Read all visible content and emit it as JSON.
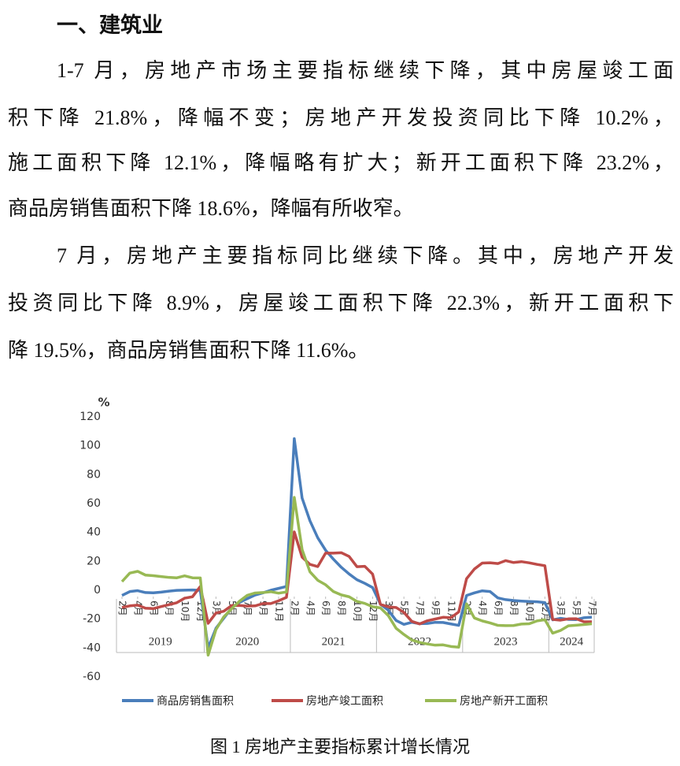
{
  "heading": "一、建筑业",
  "paragraphs": [
    [
      "1-7 月，房地产市场主要指标继续下降，其中房屋竣工面",
      "积下降 21.8%，降幅不变；房地产开发投资同比下降 10.2%，",
      "施工面积下降 12.1%，降幅略有扩大；新开工面积下降 23.2%，",
      "商品房销售面积下降 18.6%，降幅有所收窄。"
    ],
    [
      "7 月，房地产主要指标同比继续下降。其中，房地产开发",
      "投资同比下降 8.9%，房屋竣工面积下降 22.3%，新开工面积下",
      "降 19.5%，商品房销售面积下降 11.6%。"
    ]
  ],
  "chart_data": {
    "type": "line",
    "y_label": "%",
    "x": [
      "2019-02",
      "2019-03",
      "2019-04",
      "2019-05",
      "2019-06",
      "2019-07",
      "2019-08",
      "2019-09",
      "2019-10",
      "2019-11",
      "2019-12",
      "2020-02",
      "2020-03",
      "2020-04",
      "2020-05",
      "2020-06",
      "2020-07",
      "2020-08",
      "2020-09",
      "2020-10",
      "2020-11",
      "2020-12",
      "2021-02",
      "2021-03",
      "2021-04",
      "2021-05",
      "2021-06",
      "2021-07",
      "2021-08",
      "2021-09",
      "2021-10",
      "2021-11",
      "2021-12",
      "2022-02",
      "2022-03",
      "2022-04",
      "2022-05",
      "2022-06",
      "2022-07",
      "2022-08",
      "2022-09",
      "2022-10",
      "2022-11",
      "2022-12",
      "2023-02",
      "2023-03",
      "2023-04",
      "2023-05",
      "2023-06",
      "2023-07",
      "2023-08",
      "2023-09",
      "2023-10",
      "2023-11",
      "2023-12",
      "2024-02",
      "2024-03",
      "2024-04",
      "2024-05",
      "2024-06",
      "2024-07"
    ],
    "xticks": [
      {
        "value": "2019-02",
        "label": "2月"
      },
      {
        "value": "2019-04",
        "label": "4月"
      },
      {
        "value": "2019-06",
        "label": "6月"
      },
      {
        "value": "2019-08",
        "label": "8月"
      },
      {
        "value": "2019-10",
        "label": "10月"
      },
      {
        "value": "2019-12",
        "label": "12月"
      },
      {
        "value": "2020-03",
        "label": "3月"
      },
      {
        "value": "2020-05",
        "label": "5月"
      },
      {
        "value": "2020-07",
        "label": "7月"
      },
      {
        "value": "2020-09",
        "label": "9月"
      },
      {
        "value": "2020-11",
        "label": "11月"
      },
      {
        "value": "2021-02",
        "label": "2月"
      },
      {
        "value": "2021-04",
        "label": "4月"
      },
      {
        "value": "2021-06",
        "label": "6月"
      },
      {
        "value": "2021-08",
        "label": "8月"
      },
      {
        "value": "2021-10",
        "label": "10月"
      },
      {
        "value": "2021-12",
        "label": "12月"
      },
      {
        "value": "2022-03",
        "label": "3月"
      },
      {
        "value": "2022-05",
        "label": "5月"
      },
      {
        "value": "2022-07",
        "label": "7月"
      },
      {
        "value": "2022-09",
        "label": "9月"
      },
      {
        "value": "2022-11",
        "label": "11月"
      },
      {
        "value": "2023-02",
        "label": "2月"
      },
      {
        "value": "2023-04",
        "label": "4月"
      },
      {
        "value": "2023-06",
        "label": "6月"
      },
      {
        "value": "2023-08",
        "label": "8月"
      },
      {
        "value": "2023-10",
        "label": "10月"
      },
      {
        "value": "2023-12",
        "label": "12月"
      },
      {
        "value": "2024-03",
        "label": "3月"
      },
      {
        "value": "2024-05",
        "label": "5月"
      },
      {
        "value": "2024-07",
        "label": "7月"
      }
    ],
    "x_groups": [
      "2019",
      "2020",
      "2021",
      "2022",
      "2023",
      "2024"
    ],
    "ylim": [
      -60,
      120
    ],
    "yticks": [
      -60,
      -40,
      -20,
      0,
      20,
      40,
      60,
      80,
      100,
      120
    ],
    "legend": "bottom",
    "series": [
      {
        "name": "商品房销售面积",
        "color": "#4a7ebb",
        "values": [
          -3.6,
          -0.9,
          -0.3,
          -1.6,
          -1.8,
          -1.3,
          -0.6,
          -0.1,
          0.1,
          0.2,
          -0.1,
          -39.9,
          -26.3,
          -19.3,
          -12.3,
          -8.4,
          -5.8,
          -3.3,
          -1.8,
          0,
          1.3,
          2.6,
          104.9,
          63.8,
          48.1,
          36.3,
          27.7,
          21.5,
          15.9,
          11.3,
          7.3,
          4.8,
          1.9,
          -9.6,
          -13.8,
          -20.9,
          -23.6,
          -22.2,
          -23.1,
          -23.0,
          -22.2,
          -22.3,
          -23.3,
          -24.3,
          -3.6,
          -1.8,
          -0.4,
          -0.9,
          -5.3,
          -6.5,
          -7.1,
          -7.5,
          -7.8,
          -8.0,
          -8.5,
          -20.5,
          -19.4,
          -20.2,
          -20.3,
          -19.0,
          -18.6
        ]
      },
      {
        "name": "房地产竣工面积",
        "color": "#be4b48",
        "values": [
          -11.9,
          -10.8,
          -10.3,
          -12.4,
          -12.7,
          -11.3,
          -10.0,
          -8.6,
          -5.5,
          -4.5,
          2.6,
          -22.9,
          -15.8,
          -14.5,
          -10.6,
          -10.5,
          -11.0,
          -10.8,
          -9.2,
          -9.2,
          -7.3,
          -4.9,
          40.4,
          22.9,
          17.9,
          16.4,
          25.7,
          25.7,
          26.0,
          23.4,
          16.3,
          16.6,
          11.2,
          -9.8,
          -11.5,
          -11.9,
          -15.3,
          -21.5,
          -23.3,
          -21.1,
          -19.9,
          -18.7,
          -19.0,
          -15.0,
          8.0,
          14.7,
          18.8,
          19.0,
          18.5,
          20.5,
          19.2,
          19.8,
          19.0,
          17.9,
          17.0,
          -20.2,
          -20.7,
          -19.8,
          -19.7,
          -21.8,
          -21.8
        ]
      },
      {
        "name": "房地产新开工面积",
        "color": "#98b954",
        "values": [
          6.0,
          11.9,
          13.1,
          10.5,
          10.1,
          9.5,
          8.9,
          8.6,
          10.0,
          8.6,
          8.5,
          -44.9,
          -27.2,
          -18.4,
          -12.8,
          -7.6,
          -3.5,
          -1.9,
          -1.6,
          -1.0,
          -2.0,
          -1.2,
          64.3,
          28.2,
          12.8,
          6.9,
          3.8,
          -0.9,
          -3.2,
          -4.5,
          -7.7,
          -9.1,
          -11.4,
          -12.2,
          -17.5,
          -26.3,
          -30.6,
          -34.4,
          -36.1,
          -37.2,
          -38.0,
          -37.8,
          -38.9,
          -39.4,
          -9.4,
          -19.2,
          -21.2,
          -22.6,
          -24.3,
          -24.5,
          -24.4,
          -23.4,
          -23.2,
          -21.2,
          -20.4,
          -29.7,
          -27.8,
          -24.6,
          -24.2,
          -23.7,
          -23.2
        ]
      }
    ]
  },
  "caption": "图 1  房地产主要指标累计增长情况"
}
